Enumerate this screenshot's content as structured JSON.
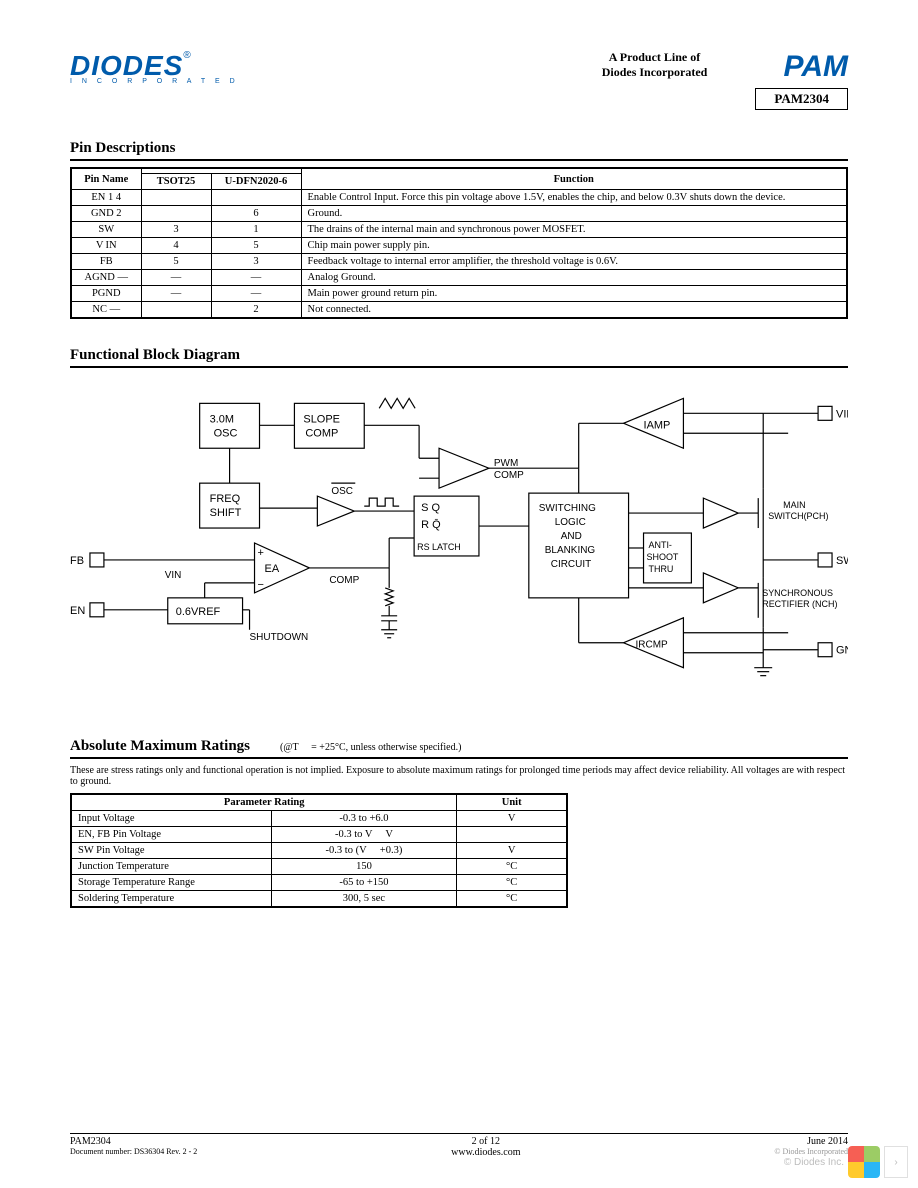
{
  "header": {
    "logo_text": "DIODES",
    "logo_sub": "I N C O R P O R A T E D",
    "product_line_1": "A Product Line of",
    "product_line_2": "Diodes Incorporated",
    "pam_logo": "PAM",
    "part_number": "PAM2304"
  },
  "pin_section": {
    "title": "Pin Descriptions",
    "headers": {
      "name": "Pin Name",
      "pkg1": "TSOT25",
      "pkg2": "U-DFN2020-6",
      "func": "Function"
    },
    "rows": [
      {
        "name": "EN 1 4",
        "c1": "",
        "c2": "",
        "func": "Enable Control Input. Force this pin voltage above 1.5V, enables the chip, and below 0.3V shuts down the device."
      },
      {
        "name": "GND 2",
        "c1": "",
        "c2": "6",
        "func": "Ground."
      },
      {
        "name": "SW",
        "c1": "3",
        "c2": "1",
        "func": "The drains of the internal main and synchronous power MOSFET."
      },
      {
        "name": "V IN",
        "c1": "4",
        "c2": "5",
        "func": "Chip main power supply pin."
      },
      {
        "name": "FB",
        "c1": "5",
        "c2": "3",
        "func": "Feedback voltage to internal error amplifier, the threshold voltage is 0.6V."
      },
      {
        "name": "AGND —",
        "c1": "—",
        "c2": "—",
        "func": "Analog    Ground."
      },
      {
        "name": "PGND",
        "c1": "—",
        "c2": "—",
        "func": "Main power ground return pin."
      },
      {
        "name": "NC —",
        "c1": "",
        "c2": "2",
        "func": "Not   connected."
      }
    ]
  },
  "block_diagram": {
    "title": "Functional Block Diagram",
    "blocks": {
      "osc": "3.0M\nOSC",
      "slope": "SLOPE\nCOMP",
      "freq": "FREQ\nSHIFT",
      "ea": "EA",
      "vref": "0.6VREF",
      "pwm": "PWM\nCOMP",
      "rs": "S  Q\nR  Q̄\nRS LATCH",
      "logic": "SWITCHING\nLOGIC\nAND\nBLANKING\nCIRCUIT",
      "anti": "ANTI-\nSHOOT\nTHRU",
      "iamp": "IAMP",
      "ircmp": "IRCMP"
    },
    "labels": {
      "fb": "FB",
      "en": "EN",
      "vin_int": "VIN",
      "comp": "COMP",
      "shutdown": "SHUTDOWN",
      "osc_bar": "OSC",
      "vin": "VIN",
      "sw": "SW",
      "gnd": "GND",
      "main_sw": "MAIN\nSWITCH(PCH)",
      "sync_rect": "SYNCHRONOUS\nRECTIFIER (NCH)"
    }
  },
  "amr": {
    "title": "Absolute Maximum Ratings",
    "note": "(@T  = +25°C, unless otherwise specified.)",
    "intro": "These are stress ratings only and functional operation is not implied. Exposure to absolute maximum ratings for prolonged time periods may affect device reliability. All voltages are with respect to ground.",
    "headers": {
      "param": "Parameter Rating",
      "unit": "Unit"
    },
    "rows": [
      {
        "param": "Input Voltage",
        "rating": "-0.3 to +6.0",
        "unit": "V"
      },
      {
        "param": "EN, FB Pin Voltage",
        "rating": "-0.3 to V    V",
        "unit": ""
      },
      {
        "param": "SW Pin Voltage",
        "rating": "-0.3 to (V   +0.3)",
        "unit": "V"
      },
      {
        "param": "Junction Temperature",
        "rating": "150",
        "unit": "°C"
      },
      {
        "param": "Storage Temperature Range",
        "rating": "-65 to +150",
        "unit": "°C"
      },
      {
        "param": "Soldering Temperature",
        "rating": "300, 5 sec",
        "unit": "°C"
      }
    ]
  },
  "footer": {
    "part": "PAM2304",
    "doc": "Document number: DS36304 Rev. 2 - 2",
    "page": "2 of 12",
    "url": "www.diodes.com",
    "date": "June 2014",
    "copyright": "© Diodes Incorporated"
  }
}
